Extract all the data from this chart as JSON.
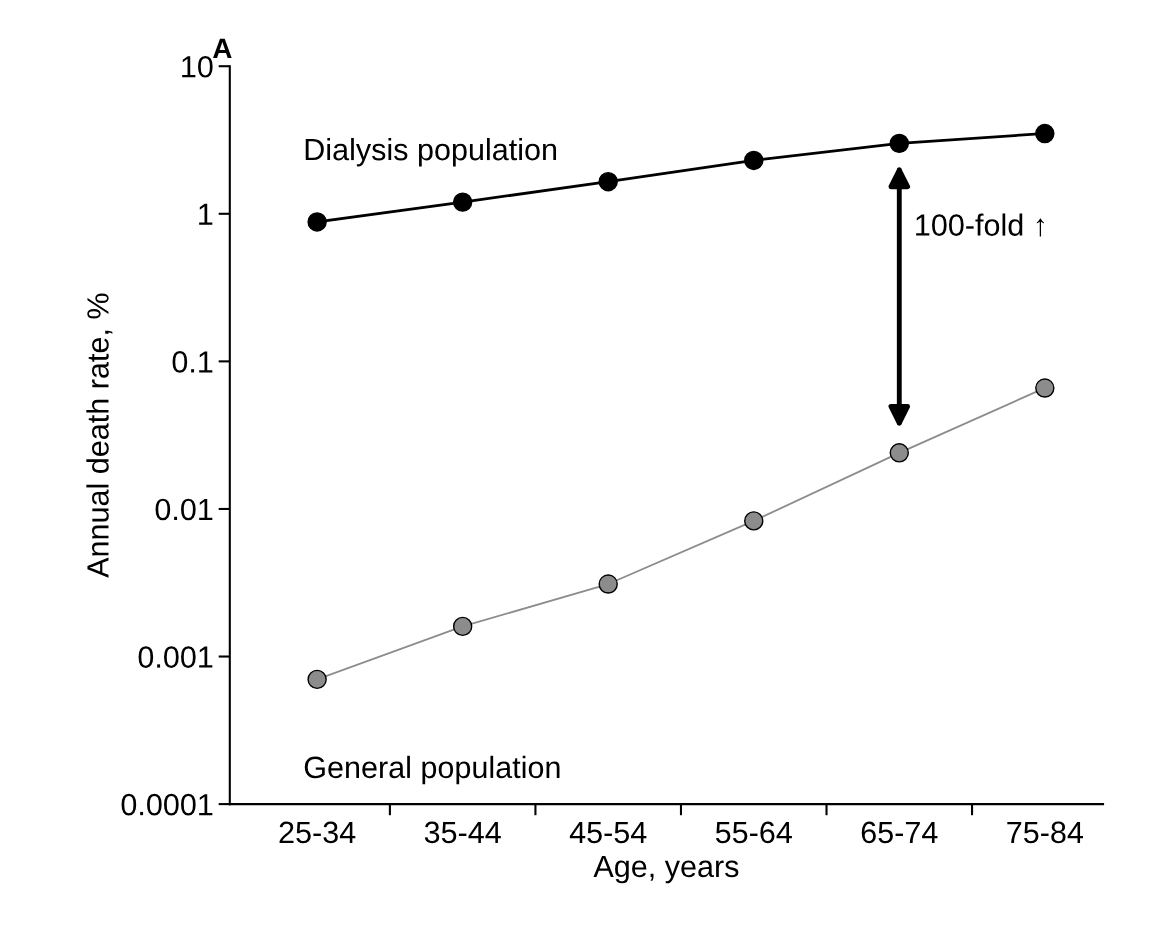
{
  "chart_data": {
    "type": "line",
    "title": "A",
    "xlabel": "Age, years",
    "ylabel": "Annual death rate, %",
    "categories": [
      "25-34",
      "35-44",
      "45-54",
      "55-64",
      "65-74",
      "75-84"
    ],
    "series": [
      {
        "name": "Dialysis population",
        "color": "#000000",
        "values": [
          0.88,
          1.2,
          1.65,
          2.3,
          3.0,
          3.5
        ]
      },
      {
        "name": "General population",
        "color": "#8c8c8c",
        "values": [
          0.0007,
          0.0016,
          0.0031,
          0.0083,
          0.024,
          0.066
        ]
      }
    ],
    "annotations": [
      "100-fold ↑"
    ],
    "log": "y",
    "ylim": [
      0.0001,
      10
    ],
    "yticks": [
      0.0001,
      0.001,
      0.01,
      0.1,
      1,
      10
    ],
    "grid": false,
    "legend": false,
    "marker": "circle",
    "line_style": "solid"
  }
}
